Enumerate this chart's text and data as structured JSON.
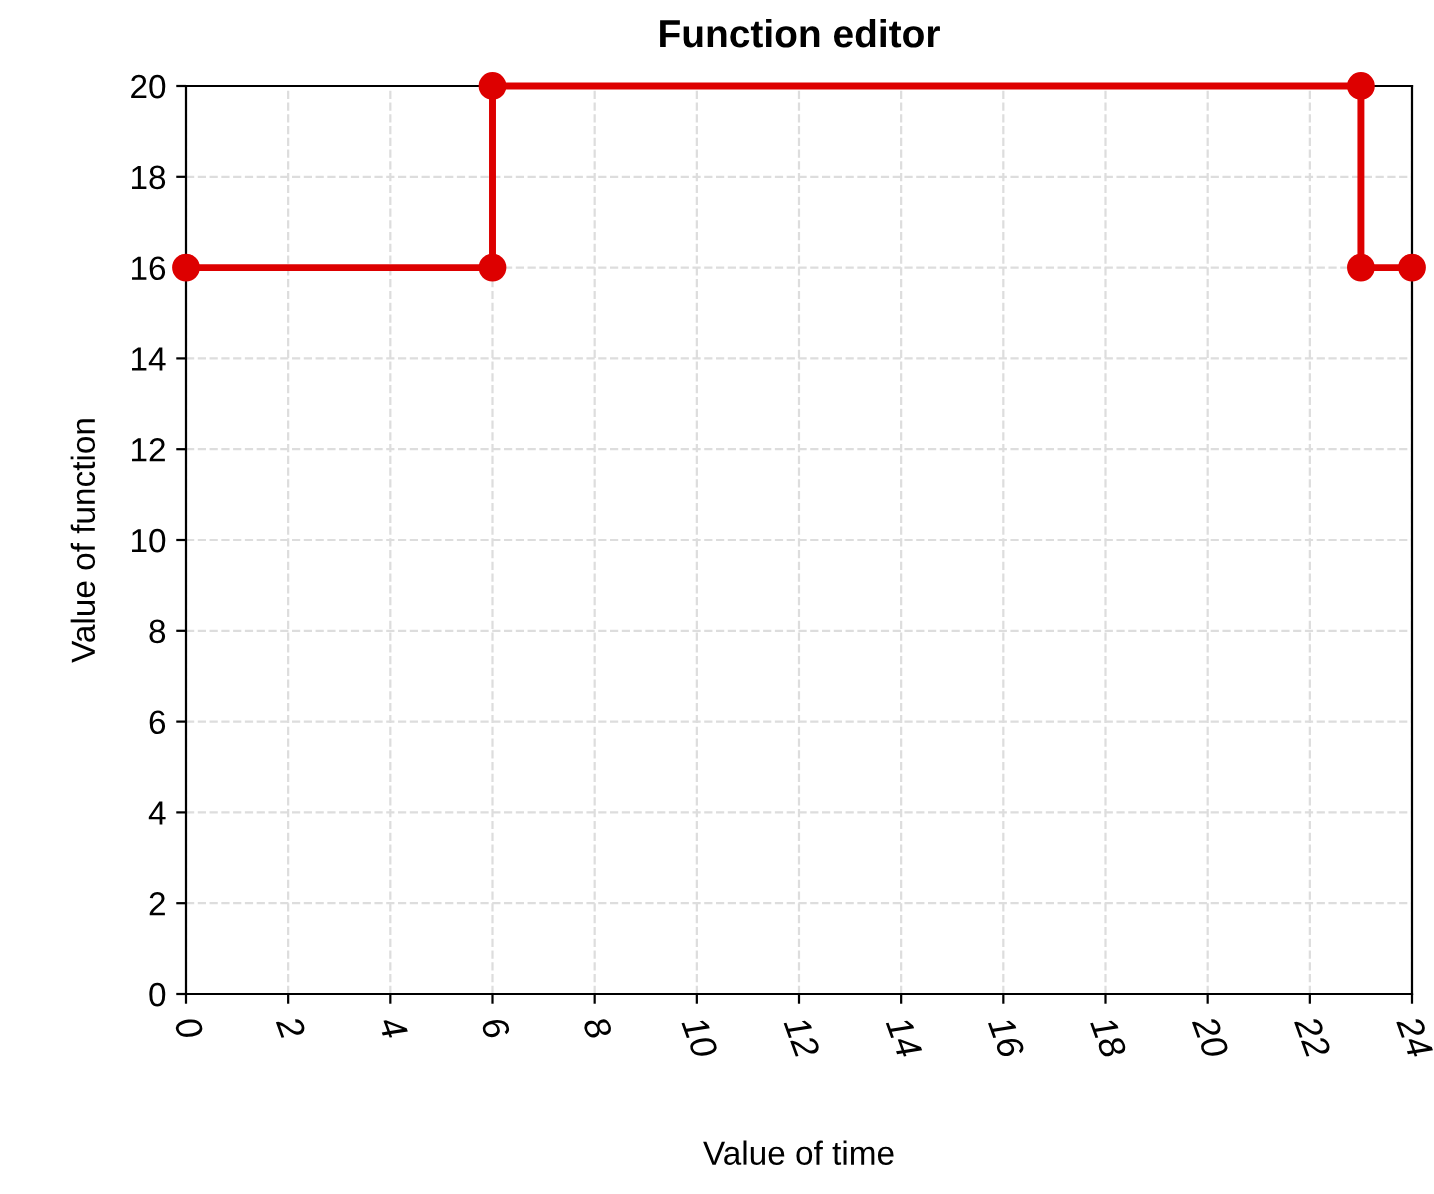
{
  "chart_data": {
    "type": "line",
    "title": "Function editor",
    "xlabel": "Value of time",
    "ylabel": "Value of function",
    "x": [
      0,
      6,
      6,
      23,
      23,
      24
    ],
    "series": [
      {
        "color": "#dd0000",
        "values": [
          16,
          16,
          20,
          20,
          16,
          16
        ]
      }
    ],
    "xlim": [
      0,
      24
    ],
    "xticks": [
      0,
      2,
      4,
      6,
      8,
      10,
      12,
      14,
      16,
      18,
      20,
      22,
      24
    ],
    "ylim": [
      0,
      20
    ],
    "yticks": [
      0,
      2,
      4,
      6,
      8,
      10,
      12,
      14,
      16,
      18,
      20
    ],
    "grid": true,
    "marker": "circle",
    "line_style": "solid",
    "legend": false
  }
}
